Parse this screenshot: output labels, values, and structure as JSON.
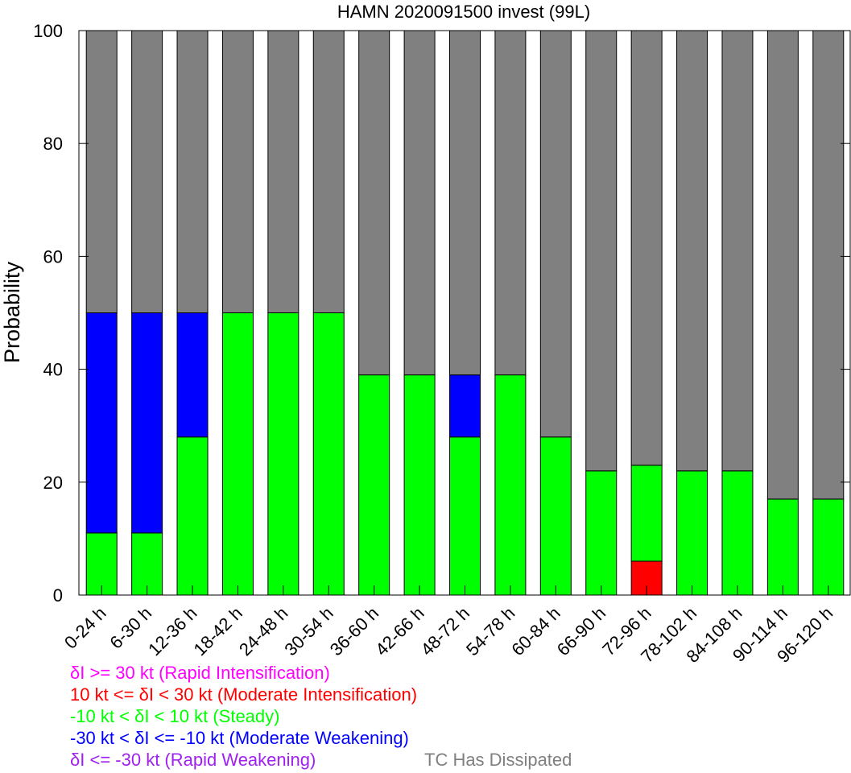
{
  "chart_data": {
    "type": "bar",
    "stacked": true,
    "title": "HAMN 2020091500 invest (99L)",
    "xlabel": "",
    "ylabel": "Probability",
    "ylim": [
      0,
      100
    ],
    "yticks": [
      0,
      20,
      40,
      60,
      80,
      100
    ],
    "categories": [
      "0-24 h",
      "6-30 h",
      "12-36 h",
      "18-42 h",
      "24-48 h",
      "30-54 h",
      "36-60 h",
      "42-66 h",
      "48-72 h",
      "54-78 h",
      "60-84 h",
      "66-90 h",
      "72-96 h",
      "78-102 h",
      "84-108 h",
      "90-114 h",
      "96-120 h"
    ],
    "series": [
      {
        "name": "δI <= -30 kt (Rapid Weakening)",
        "color": "#a020f0",
        "values": [
          0,
          0,
          0,
          0,
          0,
          0,
          0,
          0,
          0,
          0,
          0,
          0,
          0,
          0,
          0,
          0,
          0
        ]
      },
      {
        "name": "10 kt <= δI < 30 kt (Moderate Intensification)",
        "color": "#ff0000",
        "values": [
          0,
          0,
          0,
          0,
          0,
          0,
          0,
          0,
          0,
          0,
          0,
          0,
          6,
          0,
          0,
          0,
          0
        ]
      },
      {
        "name": "-10 kt < δI < 10 kt (Steady)",
        "color": "#00ff00",
        "values": [
          11,
          11,
          28,
          50,
          50,
          50,
          39,
          39,
          28,
          39,
          28,
          22,
          17,
          22,
          22,
          17,
          17
        ]
      },
      {
        "name": "-30 kt < δI <= -10 kt (Moderate Weakening)",
        "color": "#0000ff",
        "values": [
          39,
          39,
          22,
          0,
          0,
          0,
          0,
          0,
          11,
          0,
          0,
          0,
          0,
          0,
          0,
          0,
          0
        ]
      },
      {
        "name": "δI >= 30 kt (Rapid Intensification)",
        "color": "#ff00ff",
        "values": [
          0,
          0,
          0,
          0,
          0,
          0,
          0,
          0,
          0,
          0,
          0,
          0,
          0,
          0,
          0,
          0,
          0
        ]
      },
      {
        "name": "TC Has Dissipated",
        "color": "#808080",
        "values": [
          50,
          50,
          50,
          50,
          50,
          50,
          61,
          61,
          61,
          61,
          72,
          78,
          77,
          78,
          78,
          83,
          83
        ]
      }
    ],
    "legend": [
      {
        "text": "δI >= 30 kt (Rapid Intensification)",
        "color": "#ff00ff"
      },
      {
        "text": "10 kt <= δI < 30 kt (Moderate Intensification)",
        "color": "#ff0000"
      },
      {
        "text": "-10 kt < δI < 10 kt (Steady)",
        "color": "#00ff00"
      },
      {
        "text": "-30 kt < δI <= -10 kt (Moderate Weakening)",
        "color": "#0000ff"
      },
      {
        "text": "δI <= -30 kt (Rapid Weakening)",
        "color": "#a020f0"
      },
      {
        "text": "TC Has Dissipated",
        "color": "#808080"
      }
    ],
    "legend_position": "bottom-left",
    "grid": false
  }
}
